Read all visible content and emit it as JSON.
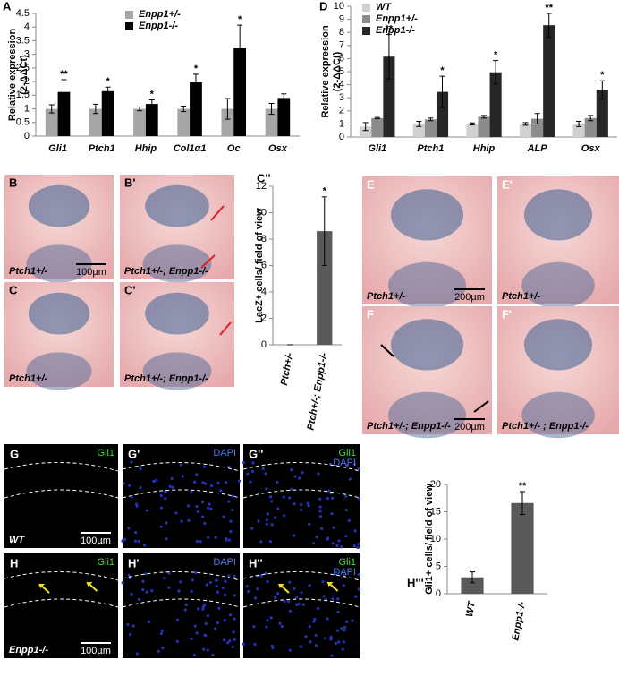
{
  "chart_data": [
    {
      "type": "bar",
      "label": "A",
      "ylabel_lines": [
        "Relative expression",
        "(2-ΔΔCt)"
      ],
      "categories": [
        "Gli1",
        "Ptch1",
        "Hhip",
        "Col1α1",
        "Oc",
        "Osx"
      ],
      "series": [
        {
          "name": "Enpp1+/-",
          "color": "#a6a6a6",
          "values": [
            1,
            1,
            1,
            1,
            1,
            1
          ],
          "errors": [
            0.15,
            0.17,
            0.07,
            0.1,
            0.38,
            0.2
          ],
          "annotations": [
            null,
            null,
            null,
            null,
            null,
            null
          ]
        },
        {
          "name": "Enpp1-/-",
          "color": "#000000",
          "values": [
            1.62,
            1.65,
            1.18,
            1.97,
            3.22,
            1.4
          ],
          "errors": [
            0.45,
            0.15,
            0.15,
            0.3,
            0.85,
            0.15
          ],
          "annotations": [
            "**",
            "*",
            "*",
            "*",
            "*",
            null
          ]
        }
      ],
      "ylim": [
        0,
        4.5
      ],
      "yticks": [
        0,
        0.5,
        1,
        1.5,
        2,
        2.5,
        3,
        3.5,
        4,
        4.5
      ]
    },
    {
      "type": "bar",
      "label": "D",
      "ylabel_lines": [
        "Relative expression",
        "(2-ΔΔCt)"
      ],
      "categories": [
        "Gli1",
        "Ptch1",
        "Hhip",
        "ALP",
        "Osx"
      ],
      "series": [
        {
          "name": "WT",
          "color": "#d0d0d0",
          "values": [
            0.8,
            1.0,
            1.0,
            1.0,
            1.0
          ],
          "errors": [
            0.3,
            0.2,
            0.08,
            0.1,
            0.2
          ],
          "annotations": [
            null,
            null,
            null,
            null,
            null
          ]
        },
        {
          "name": "Enpp1+/-",
          "color": "#8c8c8c",
          "values": [
            1.45,
            1.35,
            1.55,
            1.4,
            1.45
          ],
          "errors": [
            0.05,
            0.1,
            0.1,
            0.4,
            0.2
          ],
          "annotations": [
            null,
            null,
            null,
            null,
            null
          ]
        },
        {
          "name": "Enpp1-/-",
          "color": "#262626",
          "values": [
            6.15,
            3.45,
            4.95,
            8.55,
            3.6
          ],
          "errors": [
            1.7,
            1.2,
            0.9,
            0.9,
            0.7
          ],
          "annotations": [
            "**",
            "*",
            "*",
            "**",
            "*"
          ]
        }
      ],
      "ylim": [
        0,
        10
      ],
      "yticks": [
        0,
        1,
        2,
        3,
        4,
        5,
        6,
        7,
        8,
        9,
        10
      ]
    },
    {
      "type": "bar",
      "label": "C''",
      "ylabel_lines": [
        "LacZ+ cells/ field of view"
      ],
      "categories": [
        "Ptch+/-",
        "Ptch+/-; Enpp1-/-"
      ],
      "series": [
        {
          "color": "#595959",
          "values": [
            0,
            8.6
          ],
          "errors": [
            0,
            2.6
          ],
          "annotations": [
            null,
            "*"
          ]
        }
      ],
      "ylim": [
        0,
        12
      ],
      "yticks": [
        0,
        2,
        4,
        6,
        8,
        10,
        12
      ]
    },
    {
      "type": "bar",
      "label": "H'''",
      "ylabel_lines": [
        "Gli1+ cells/ field of view"
      ],
      "categories": [
        "WT",
        "Enpp1-/-"
      ],
      "series": [
        {
          "color": "#595959",
          "values": [
            3,
            16.6
          ],
          "errors": [
            1,
            2.1
          ],
          "annotations": [
            null,
            "**"
          ]
        }
      ],
      "ylim": [
        0,
        20
      ],
      "yticks": [
        0,
        5,
        10,
        15,
        20
      ]
    }
  ],
  "image_panels": [
    {
      "label": "B",
      "caption": "Ptch1+/-",
      "scale": "100µm"
    },
    {
      "label": "B'",
      "caption": "Ptch1+/-; Enpp1-/-"
    },
    {
      "label": "C",
      "caption": "Ptch1+/-"
    },
    {
      "label": "C'",
      "caption": "Ptch1+/-; Enpp1-/-"
    },
    {
      "label": "E",
      "caption": "Ptch1+/-",
      "scale": "200µm"
    },
    {
      "label": "E'",
      "caption": "Ptch1+/-"
    },
    {
      "label": "F",
      "caption": "Ptch1+/-; Enpp1-/-",
      "scale": "200µm"
    },
    {
      "label": "F'",
      "caption": "Ptch1+/- ; Enpp1-/-"
    },
    {
      "label": "G",
      "stains": [
        "Gli1"
      ],
      "caption": "WT",
      "scale": "100µm"
    },
    {
      "label": "G'",
      "stains": [
        "DAPI"
      ]
    },
    {
      "label": "G''",
      "stains": [
        "Gli1",
        "DAPI"
      ]
    },
    {
      "label": "H",
      "stains": [
        "Gli1"
      ],
      "caption": "Enpp1-/-",
      "scale": "100µm"
    },
    {
      "label": "H'",
      "stains": [
        "DAPI"
      ]
    },
    {
      "label": "H''",
      "stains": [
        "Gli1",
        "DAPI"
      ]
    }
  ]
}
